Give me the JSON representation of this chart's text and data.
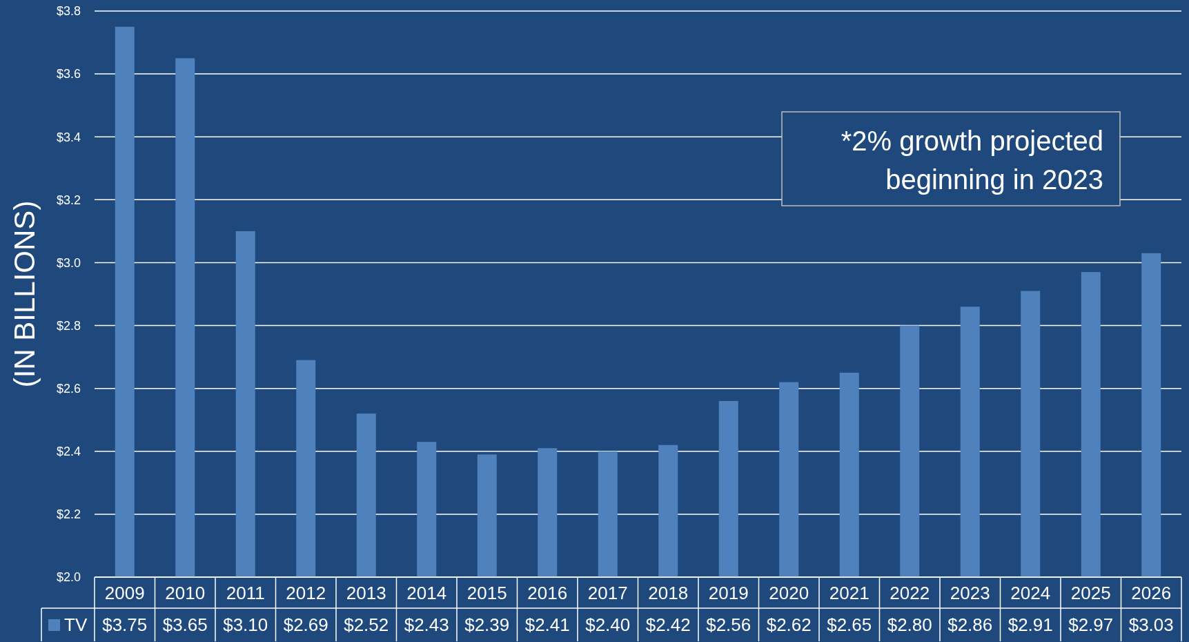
{
  "chart_data": {
    "type": "bar",
    "ylabel": "(IN BILLIONS)",
    "categories": [
      "2009",
      "2010",
      "2011",
      "2012",
      "2013",
      "2014",
      "2015",
      "2016",
      "2017",
      "2018",
      "2019",
      "2020",
      "2021",
      "2022",
      "2023",
      "2024",
      "2025",
      "2026"
    ],
    "series": [
      {
        "name": "TV",
        "color": "#4f81bd",
        "values": [
          3.75,
          3.65,
          3.1,
          2.69,
          2.52,
          2.43,
          2.39,
          2.41,
          2.4,
          2.42,
          2.56,
          2.62,
          2.65,
          2.8,
          2.86,
          2.91,
          2.97,
          3.03
        ],
        "value_labels": [
          "$3.75",
          "$3.65",
          "$3.10",
          "$2.69",
          "$2.52",
          "$2.43",
          "$2.39",
          "$2.41",
          "$2.40",
          "$2.42",
          "$2.56",
          "$2.62",
          "$2.65",
          "$2.80",
          "$2.86",
          "$2.91",
          "$2.97",
          "$3.03"
        ]
      }
    ],
    "ylim": [
      2.0,
      3.8
    ],
    "yticks": [
      {
        "value": 2.0,
        "label": "$2.0"
      },
      {
        "value": 2.2,
        "label": "$2.2"
      },
      {
        "value": 2.4,
        "label": "$2.4"
      },
      {
        "value": 2.6,
        "label": "$2.6"
      },
      {
        "value": 2.8,
        "label": "$2.8"
      },
      {
        "value": 3.0,
        "label": "$3.0"
      },
      {
        "value": 3.2,
        "label": "$3.2"
      },
      {
        "value": 3.4,
        "label": "$3.4"
      },
      {
        "value": 3.6,
        "label": "$3.6"
      },
      {
        "value": 3.8,
        "label": "$3.8"
      }
    ],
    "grid": "y",
    "legend": "bottom",
    "annotations": [
      "*2% growth projected beginning in 2023"
    ]
  }
}
